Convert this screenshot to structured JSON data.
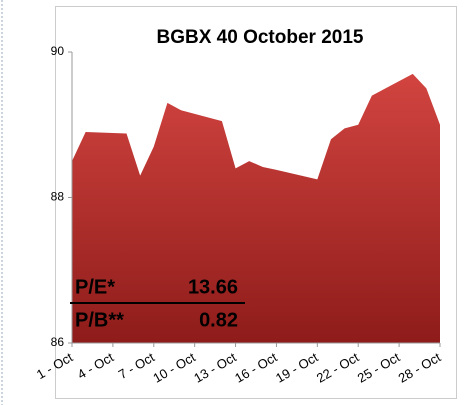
{
  "chart_data": {
    "type": "area",
    "title": "BGBX 40 October 2015",
    "x": [
      1,
      2,
      5,
      6,
      7,
      8,
      9,
      12,
      13,
      14,
      15,
      16,
      19,
      20,
      21,
      22,
      23,
      26,
      27,
      28
    ],
    "values": [
      88.5,
      88.9,
      88.88,
      88.3,
      88.7,
      89.3,
      89.2,
      89.05,
      88.4,
      88.5,
      88.42,
      88.38,
      88.25,
      88.8,
      88.95,
      89.0,
      89.4,
      89.7,
      89.5,
      89.0
    ],
    "color": "#d24440",
    "xlim": [
      1,
      28
    ],
    "xticks": [
      {
        "value": 1,
        "label": "1 - Oct"
      },
      {
        "value": 4,
        "label": "4 - Oct"
      },
      {
        "value": 7,
        "label": "7 - Oct"
      },
      {
        "value": 10,
        "label": "10 - Oct"
      },
      {
        "value": 13,
        "label": "13 - Oct"
      },
      {
        "value": 16,
        "label": "16 - Oct"
      },
      {
        "value": 19,
        "label": "19 - Oct"
      },
      {
        "value": 22,
        "label": "22 - Oct"
      },
      {
        "value": 25,
        "label": "25 - Oct"
      },
      {
        "value": 28,
        "label": "28 - Oct"
      }
    ],
    "ylim": [
      86,
      90
    ],
    "yticks": [
      86,
      88,
      90
    ],
    "annotations": [
      {
        "text": "P/E*",
        "value": 13.66
      },
      {
        "text": "P/B**",
        "value": 0.82
      }
    ]
  }
}
